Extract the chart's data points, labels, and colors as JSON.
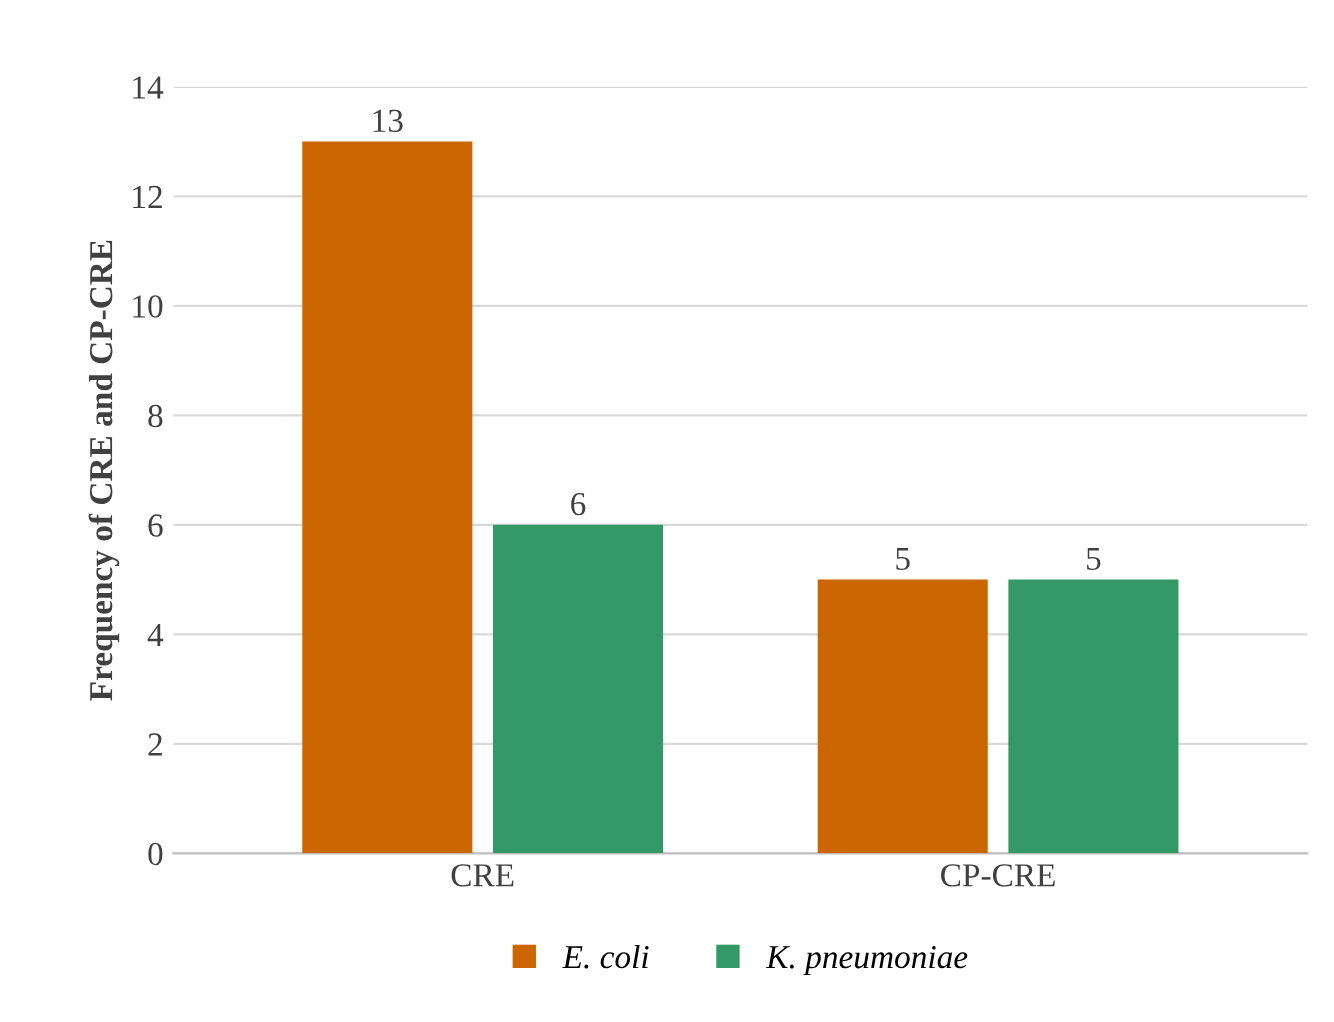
{
  "chart_data": {
    "type": "bar",
    "ylabel": "Frequency of CRE and CP-CRE",
    "categories": [
      "CRE",
      "CP-CRE"
    ],
    "series": [
      {
        "name": "E. coli",
        "color": "#cc6600",
        "values": [
          13,
          5
        ]
      },
      {
        "name": "K. pneumoniae",
        "color": "#339966",
        "values": [
          6,
          5
        ]
      }
    ],
    "ylim": [
      0,
      14
    ],
    "yticks": [
      0,
      2,
      4,
      6,
      8,
      10,
      12,
      14
    ],
    "grid": "y",
    "legend": "bottom",
    "data_labels": true
  }
}
